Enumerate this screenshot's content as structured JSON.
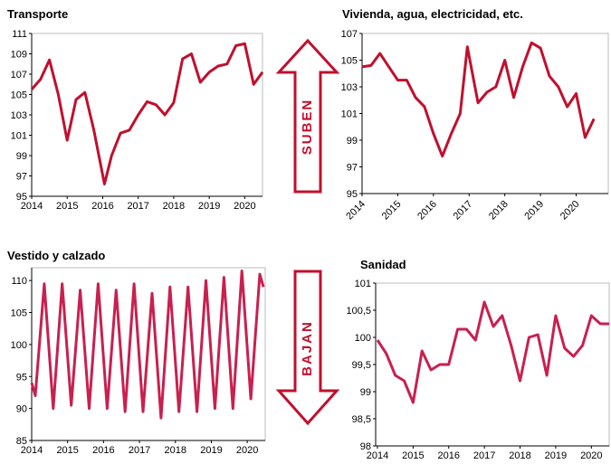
{
  "chart_data": [
    {
      "type": "line",
      "title": "Transporte",
      "color": "#c0102e",
      "x": [
        2014,
        2014.25,
        2014.5,
        2014.75,
        2015,
        2015.25,
        2015.5,
        2015.75,
        2016.05,
        2016.25,
        2016.5,
        2016.75,
        2017,
        2017.25,
        2017.5,
        2017.75,
        2018,
        2018.25,
        2018.5,
        2018.75,
        2019,
        2019.25,
        2019.5,
        2019.75,
        2020,
        2020.25,
        2020.5
      ],
      "values": [
        105.5,
        106.5,
        108.4,
        105,
        100.5,
        104.5,
        105.2,
        101.5,
        96.2,
        99,
        101.2,
        101.5,
        103,
        104.3,
        104,
        103,
        104.2,
        108.5,
        109,
        106.2,
        107.2,
        107.8,
        108,
        109.8,
        110,
        106,
        107.2
      ],
      "xlim": [
        2014,
        2020.5
      ],
      "xticks": [
        2014,
        2015,
        2016,
        2017,
        2018,
        2019,
        2020
      ],
      "ylim": [
        95,
        111
      ],
      "yticks": [
        95,
        97,
        99,
        101,
        103,
        105,
        107,
        109,
        111
      ]
    },
    {
      "type": "line",
      "title": "Vivienda, agua, electricidad, etc.",
      "color": "#c0102e",
      "xtick_rotation": -45,
      "x": [
        2014,
        2014.25,
        2014.5,
        2014.75,
        2015,
        2015.25,
        2015.5,
        2015.75,
        2016,
        2016.25,
        2016.5,
        2016.75,
        2016.95,
        2017.25,
        2017.5,
        2017.75,
        2018,
        2018.25,
        2018.5,
        2018.75,
        2019,
        2019.25,
        2019.5,
        2019.75,
        2020,
        2020.25,
        2020.5
      ],
      "values": [
        104.5,
        104.6,
        105.5,
        104.5,
        103.5,
        103.5,
        102.2,
        101.5,
        99.5,
        97.8,
        99.5,
        101,
        106,
        101.8,
        102.6,
        103,
        105,
        102.2,
        104.5,
        106.3,
        105.9,
        103.8,
        103,
        101.5,
        102.5,
        99.2,
        100.6
      ],
      "xlim": [
        2014,
        2020.9
      ],
      "xticks": [
        2014,
        2015,
        2016,
        2017,
        2018,
        2019,
        2020
      ],
      "ylim": [
        95,
        107
      ],
      "yticks": [
        95,
        97,
        99,
        101,
        103,
        105,
        107
      ]
    },
    {
      "type": "line",
      "title": "Vestido y calzado",
      "color": "#c8204f",
      "x": [
        2014,
        2014.1,
        2014.35,
        2014.6,
        2014.85,
        2015.1,
        2015.35,
        2015.6,
        2015.85,
        2016.1,
        2016.35,
        2016.6,
        2016.85,
        2017.1,
        2017.35,
        2017.6,
        2017.85,
        2018.1,
        2018.35,
        2018.6,
        2018.85,
        2019.1,
        2019.35,
        2019.6,
        2019.85,
        2020.1,
        2020.35,
        2020.45
      ],
      "values": [
        94,
        92,
        109.5,
        90,
        109.5,
        90.5,
        108.5,
        90,
        109.5,
        90,
        108.5,
        89.5,
        109.5,
        89.5,
        108,
        88.5,
        109,
        89.5,
        109,
        89.5,
        110,
        90,
        110.5,
        90,
        111.5,
        91.5,
        111,
        109
      ],
      "xlim": [
        2014,
        2020.5
      ],
      "xticks": [
        2014,
        2015,
        2016,
        2017,
        2018,
        2019,
        2020
      ],
      "ylim": [
        85,
        112
      ],
      "yticks": [
        85,
        90,
        95,
        100,
        105,
        110
      ]
    },
    {
      "type": "line",
      "title": "Sanidad",
      "color": "#c8204f",
      "x": [
        2014,
        2014.25,
        2014.5,
        2014.75,
        2015,
        2015.25,
        2015.5,
        2015.75,
        2016,
        2016.25,
        2016.5,
        2016.75,
        2017,
        2017.25,
        2017.5,
        2017.75,
        2018,
        2018.25,
        2018.5,
        2018.75,
        2019,
        2019.25,
        2019.5,
        2019.75,
        2020,
        2020.25,
        2020.5
      ],
      "values": [
        99.95,
        99.7,
        99.3,
        99.2,
        98.8,
        99.75,
        99.4,
        99.5,
        99.5,
        100.15,
        100.15,
        99.95,
        100.65,
        100.2,
        100.4,
        99.85,
        99.2,
        100,
        100.05,
        99.3,
        100.4,
        99.8,
        99.65,
        99.85,
        100.4,
        100.25,
        100.25
      ],
      "xlim": [
        2013.95,
        2020.5
      ],
      "xticks": [
        2014,
        2015,
        2016,
        2017,
        2018,
        2019,
        2020
      ],
      "ylim": [
        98,
        101
      ],
      "yticks": [
        98,
        {
          "value": 98.5,
          "label": "98,5"
        },
        99,
        {
          "value": 99.5,
          "label": "99,5"
        },
        100,
        {
          "value": 100.5,
          "label": "100,5"
        },
        101
      ]
    }
  ],
  "arrows": {
    "up": "SUBEN",
    "down": "BAJAN"
  }
}
